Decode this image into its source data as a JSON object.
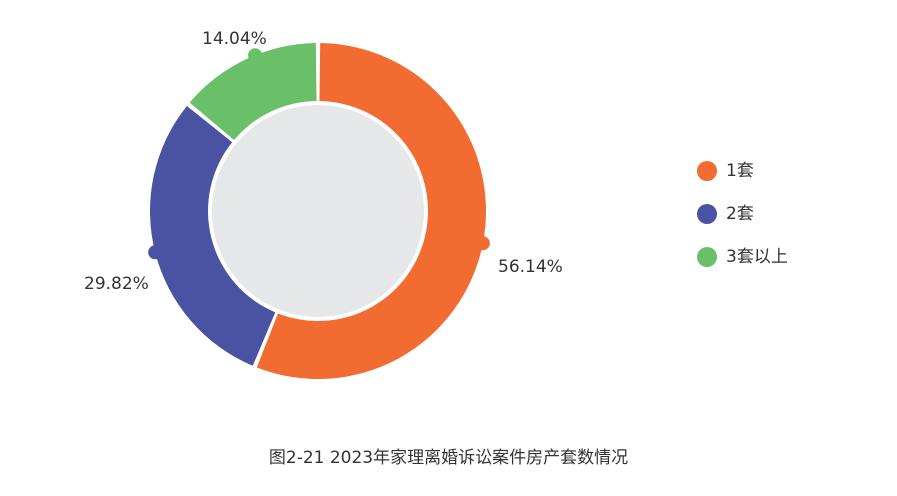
{
  "caption": "图2-21  2023年家理离婚诉讼案件房产套数情况",
  "colors": {
    "series_1": "#f26b30",
    "series_2": "#4a52a3",
    "series_3": "#6abf69",
    "inner_fill": "#e6e7e9",
    "label_text": "#333333"
  },
  "chart_data": {
    "type": "pie",
    "variant": "donut",
    "title": "图2-21  2023年家理离婚诉讼案件房产套数情况",
    "categories": [
      "1套",
      "2套",
      "3套以上"
    ],
    "values": [
      56.14,
      29.82,
      14.04
    ],
    "labels": [
      "56.14%",
      "29.82%",
      "14.04%"
    ],
    "units": "%",
    "legend_position": "right",
    "start_angle": "top (12 o'clock), clockwise"
  }
}
